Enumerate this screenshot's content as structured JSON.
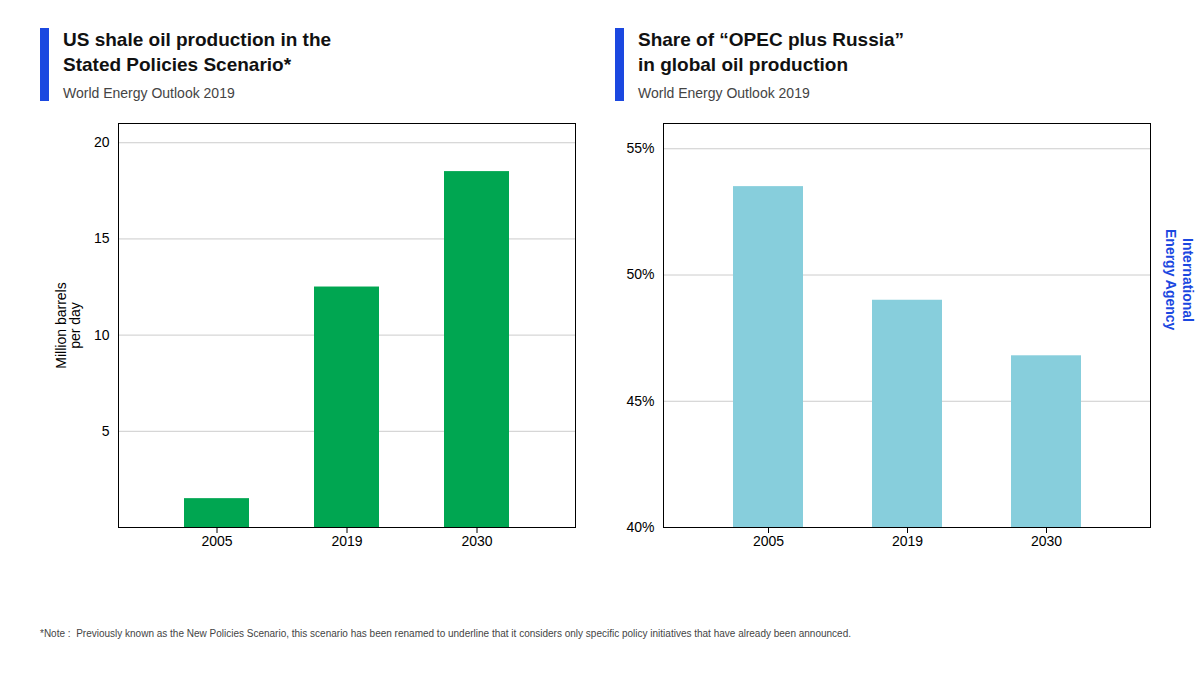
{
  "chart_data": [
    {
      "type": "bar",
      "title": "US shale oil production in the\nStated Policies Scenario*",
      "subtitle": "World Energy Outlook 2019",
      "categories": [
        "2005",
        "2019",
        "2030"
      ],
      "values": [
        1.5,
        12.5,
        18.5
      ],
      "color": "#00A651",
      "ylabel": "Million barrels\nper day",
      "ylim": [
        0,
        21
      ],
      "yticks": [
        5,
        10,
        15,
        20
      ],
      "grid": true
    },
    {
      "type": "bar",
      "title": "Share of “OPEC plus Russia”\nin global oil production",
      "subtitle": "World Energy Outlook 2019",
      "categories": [
        "2005",
        "2019",
        "2030"
      ],
      "values": [
        53.5,
        49.0,
        46.8
      ],
      "color": "#87CEDC",
      "ylim": [
        40,
        56
      ],
      "yticks": [
        {
          "value": 40,
          "label": "40%"
        },
        {
          "value": 45,
          "label": "45%"
        },
        {
          "value": 50,
          "label": "50%"
        },
        {
          "value": 55,
          "label": "55%"
        }
      ],
      "grid": true
    }
  ],
  "annotations": [
    "*Note :  Previously known as the New Policies Scenario, this scenario has been renamed to underline that it considers only specific policy initiatives that have already been announced.",
    "International\nEnergy Agency"
  ]
}
